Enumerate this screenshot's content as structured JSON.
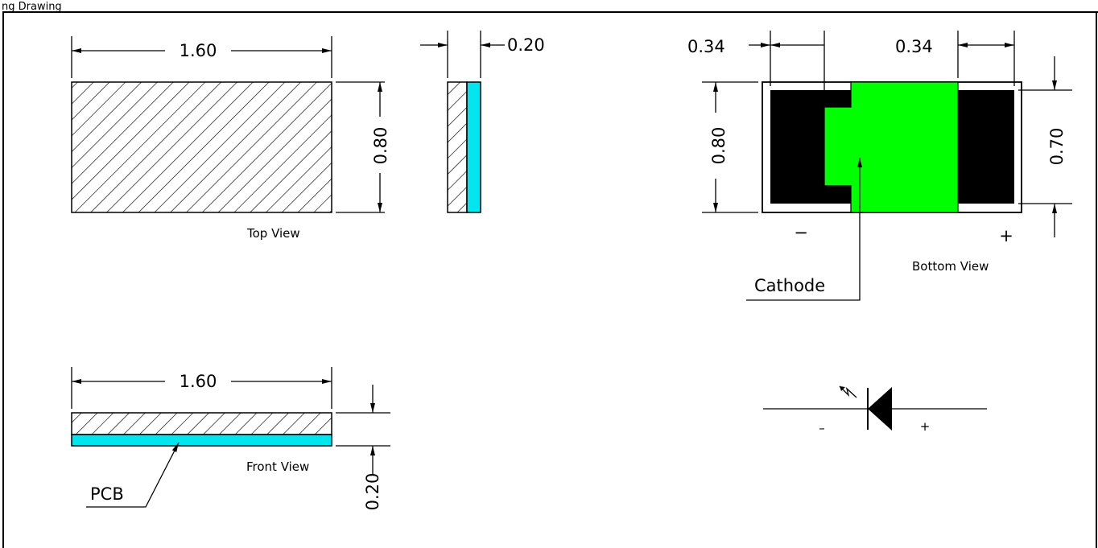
{
  "header": {
    "caption": "ng Drawing"
  },
  "colors": {
    "pcb": "#00e5ee",
    "cathode_pad": "#00ff00",
    "pad": "#000000",
    "outline": "#000000"
  },
  "top_view": {
    "width_dim": "1.60",
    "height_dim": "0.80",
    "label": "Top View"
  },
  "side_view": {
    "thickness_dim": "0.20"
  },
  "bottom_view": {
    "left_pad_dim": "0.34",
    "right_pad_dim": "0.34",
    "height_dim": "0.80",
    "pad_height_dim": "0.70",
    "minus_sign": "−",
    "plus_sign": "+",
    "cathode_label": "Cathode",
    "label": "Bottom View"
  },
  "front_view": {
    "width_dim": "1.60",
    "thickness_dim": "0.20",
    "label": "Front View",
    "pcb_label": "PCB"
  },
  "symbol": {
    "minus": "–",
    "plus": "+"
  }
}
